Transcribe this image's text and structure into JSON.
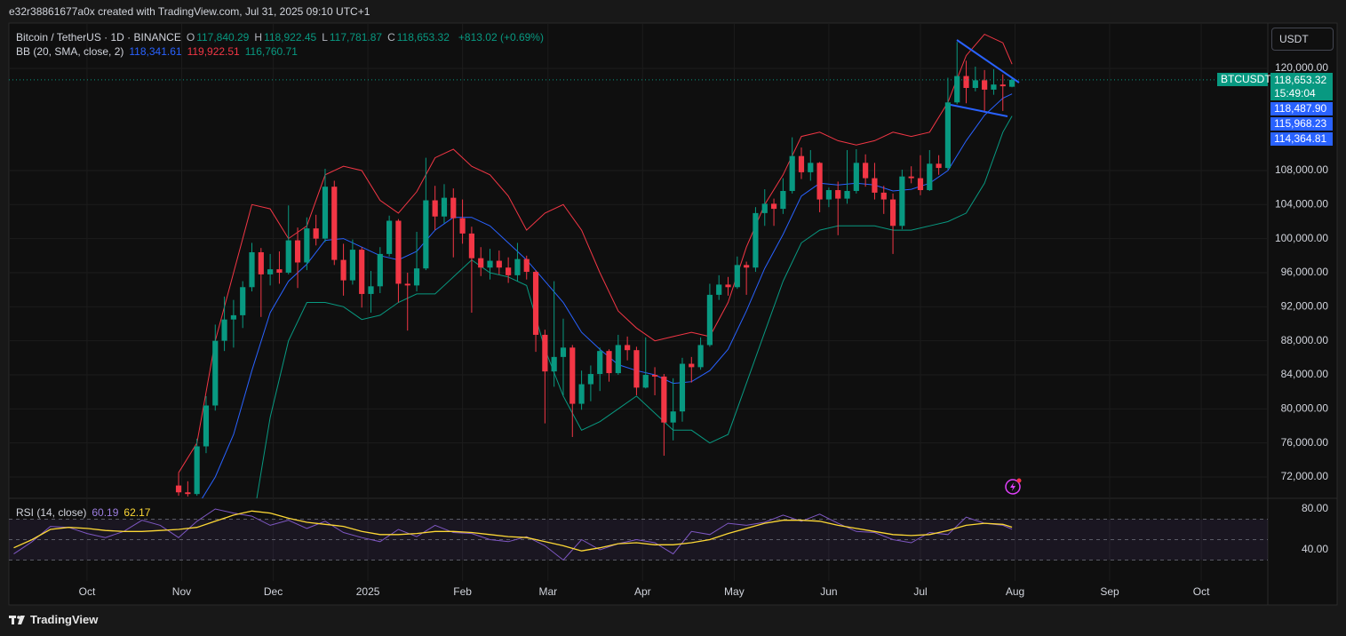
{
  "header": {
    "credit": "e32r38861677a0x created with TradingView.com, Jul 31, 2025 09:10 UTC+1"
  },
  "footer": {
    "brand": "TradingView"
  },
  "chart_data": [
    {
      "type": "candlestick",
      "title": "Bitcoin / TetherUS · 1D · BINANCE",
      "ohlc_legend": [
        {
          "key": "O",
          "value": "117,840.29"
        },
        {
          "key": "H",
          "value": "118,922.45"
        },
        {
          "key": "L",
          "value": "117,781.87"
        },
        {
          "key": "C",
          "value": "118,653.32"
        }
      ],
      "change": "+813.02 (+0.69%)",
      "unit": "USDT",
      "up_color": "#089981",
      "down_color": "#f23645",
      "grid": true,
      "xlim": [
        -25.6,
        386.8
      ],
      "ylim": [
        69600,
        124900
      ],
      "yticks": [
        {
          "value": 72000,
          "label": "72,000.00"
        },
        {
          "value": 76000,
          "label": "76,000.00"
        },
        {
          "value": 80000,
          "label": "80,000.00"
        },
        {
          "value": 84000,
          "label": "84,000.00"
        },
        {
          "value": 88000,
          "label": "88,000.00"
        },
        {
          "value": 92000,
          "label": "92,000.00"
        },
        {
          "value": 96000,
          "label": "96,000.00"
        },
        {
          "value": 100000,
          "label": "100,000.00"
        },
        {
          "value": 104000,
          "label": "104,000.00"
        },
        {
          "value": 108000,
          "label": "108,000.00"
        },
        {
          "value": 120000,
          "label": "120,000.00"
        }
      ],
      "x": [
        30,
        33,
        36,
        39,
        42,
        45,
        48,
        51,
        54,
        57,
        60,
        63,
        66,
        69,
        72,
        75,
        78,
        81,
        84,
        87,
        90,
        93,
        96,
        99,
        102,
        105,
        108,
        111,
        114,
        117,
        120,
        123,
        126,
        129,
        132,
        135,
        138,
        141,
        144,
        147,
        150,
        153,
        156,
        159,
        162,
        165,
        168,
        171,
        174,
        177,
        180,
        183,
        186,
        189,
        192,
        195,
        198,
        201,
        204,
        207,
        210,
        213,
        216,
        219,
        222,
        225,
        228,
        231,
        234,
        237,
        240,
        243,
        246,
        249,
        252,
        255,
        258,
        261,
        264,
        267,
        270,
        273,
        276,
        279,
        282,
        285,
        288,
        291,
        294,
        297,
        300,
        303
      ],
      "ohlc": [
        [
          71000,
          72500,
          69800,
          70200
        ],
        [
          70200,
          71500,
          69700,
          70000
        ],
        [
          70000,
          76500,
          69800,
          75600
        ],
        [
          75600,
          81500,
          74800,
          80400
        ],
        [
          80400,
          89900,
          79800,
          88000
        ],
        [
          88000,
          93200,
          86800,
          90500
        ],
        [
          90500,
          92800,
          87200,
          91000
        ],
        [
          91000,
          95000,
          89500,
          94300
        ],
        [
          94300,
          99500,
          93800,
          98400
        ],
        [
          98400,
          98900,
          90800,
          95800
        ],
        [
          95800,
          98200,
          94500,
          96400
        ],
        [
          96400,
          98500,
          94700,
          96000
        ],
        [
          96000,
          103900,
          95800,
          99800
        ],
        [
          99800,
          101300,
          94200,
          97200
        ],
        [
          97200,
          102500,
          96300,
          101200
        ],
        [
          101200,
          102800,
          99200,
          100000
        ],
        [
          100000,
          108200,
          99600,
          106100
        ],
        [
          106100,
          106800,
          96900,
          97500
        ],
        [
          97500,
          99400,
          93300,
          95100
        ],
        [
          95100,
          99900,
          94600,
          98700
        ],
        [
          98700,
          99000,
          91900,
          93500
        ],
        [
          93500,
          96200,
          91300,
          94400
        ],
        [
          94400,
          99000,
          93600,
          98200
        ],
        [
          98200,
          102700,
          97900,
          102100
        ],
        [
          102100,
          102300,
          92500,
          94700
        ],
        [
          94700,
          96000,
          89200,
          94500
        ],
        [
          94500,
          100800,
          93800,
          96500
        ],
        [
          96500,
          109500,
          96300,
          104500
        ],
        [
          104500,
          106200,
          101000,
          102600
        ],
        [
          102600,
          106400,
          101800,
          104800
        ],
        [
          104800,
          105900,
          97800,
          102400
        ],
        [
          102400,
          104600,
          99400,
          100600
        ],
        [
          100600,
          101400,
          91300,
          97700
        ],
        [
          97700,
          99000,
          95600,
          96600
        ],
        [
          96600,
          98800,
          95200,
          97400
        ],
        [
          97400,
          98600,
          95800,
          96600
        ],
        [
          96600,
          97800,
          94800,
          95700
        ],
        [
          95700,
          99500,
          95000,
          97600
        ],
        [
          97600,
          98000,
          95200,
          96100
        ],
        [
          96100,
          96300,
          86700,
          88700
        ],
        [
          88700,
          89300,
          78300,
          84400
        ],
        [
          84400,
          95000,
          82600,
          86100
        ],
        [
          86100,
          90600,
          81600,
          87200
        ],
        [
          87200,
          87500,
          76700,
          80600
        ],
        [
          80600,
          84500,
          79900,
          82900
        ],
        [
          82900,
          85100,
          80900,
          84100
        ],
        [
          84100,
          87200,
          82100,
          86800
        ],
        [
          86800,
          87000,
          83200,
          84200
        ],
        [
          84200,
          88700,
          84000,
          87500
        ],
        [
          87500,
          88500,
          85700,
          86900
        ],
        [
          86900,
          87300,
          81600,
          82500
        ],
        [
          82500,
          88400,
          82400,
          84000
        ],
        [
          84000,
          84900,
          81600,
          83800
        ],
        [
          83800,
          84100,
          74500,
          78400
        ],
        [
          78400,
          83600,
          76300,
          79700
        ],
        [
          79700,
          86000,
          78500,
          85300
        ],
        [
          85300,
          86100,
          83100,
          84900
        ],
        [
          84900,
          88400,
          84600,
          87500
        ],
        [
          87500,
          94700,
          87300,
          93400
        ],
        [
          93400,
          95700,
          92800,
          94600
        ],
        [
          94600,
          95500,
          93300,
          94300
        ],
        [
          94300,
          97900,
          94100,
          96900
        ],
        [
          96900,
          97300,
          93400,
          96600
        ],
        [
          96600,
          103700,
          96100,
          103000
        ],
        [
          103000,
          105800,
          101500,
          104100
        ],
        [
          104100,
          104700,
          101500,
          103500
        ],
        [
          103500,
          107100,
          102900,
          105600
        ],
        [
          105600,
          111900,
          105300,
          109700
        ],
        [
          109700,
          110700,
          107000,
          107800
        ],
        [
          107800,
          110400,
          106800,
          108900
        ],
        [
          108900,
          109000,
          103100,
          104600
        ],
        [
          104600,
          106000,
          103700,
          105700
        ],
        [
          105700,
          106700,
          100400,
          104700
        ],
        [
          104700,
          110400,
          104100,
          105600
        ],
        [
          105600,
          110500,
          105300,
          108900
        ],
        [
          108900,
          109900,
          106100,
          107100
        ],
        [
          107100,
          108900,
          104600,
          105400
        ],
        [
          105400,
          106200,
          102900,
          104600
        ],
        [
          104600,
          105300,
          98200,
          101500
        ],
        [
          101500,
          108100,
          101100,
          107300
        ],
        [
          107300,
          108500,
          106500,
          107100
        ],
        [
          107100,
          109800,
          105100,
          105700
        ],
        [
          105700,
          110400,
          105600,
          108800
        ],
        [
          108800,
          109800,
          107500,
          108300
        ],
        [
          108300,
          118900,
          108100,
          116000
        ],
        [
          116000,
          123100,
          115800,
          119100
        ],
        [
          119100,
          120900,
          115900,
          117700
        ],
        [
          117700,
          120200,
          117300,
          118600
        ],
        [
          118600,
          119800,
          114800,
          117500
        ],
        [
          117500,
          119900,
          116900,
          118100
        ],
        [
          118100,
          119300,
          115000,
          117900
        ],
        [
          117840.29,
          118922.45,
          117781.87,
          118653.32
        ]
      ],
      "bands": {
        "title": "BB (20, SMA, close, 2)",
        "legend_values": [
          "118,341.61",
          "119,922.51",
          "116,760.71"
        ],
        "x": [
          30,
          36,
          42,
          48,
          54,
          60,
          66,
          72,
          78,
          84,
          90,
          96,
          102,
          108,
          114,
          120,
          126,
          132,
          138,
          144,
          150,
          156,
          162,
          168,
          174,
          180,
          186,
          192,
          198,
          204,
          210,
          216,
          222,
          228,
          234,
          240,
          246,
          252,
          258,
          264,
          270,
          276,
          282,
          288,
          294,
          300,
          303
        ],
        "series": [
          {
            "color": "#2962ff",
            "values": [
              67000,
              68500,
              72000,
              77000,
              84500,
              91300,
              95000,
              97000,
              99800,
              100000,
              99000,
              98000,
              97500,
              98500,
              101000,
              102500,
              102500,
              101500,
              99500,
              97500,
              95000,
              92500,
              89000,
              87000,
              85200,
              84500,
              84000,
              83000,
              83200,
              84500,
              87000,
              91500,
              96500,
              100500,
              105000,
              106500,
              106300,
              106500,
              106300,
              105600,
              105800,
              106500,
              108000,
              111500,
              114500,
              116500,
              117000
            ]
          },
          {
            "color": "#f23645",
            "values": [
              72500,
              76000,
              88000,
              96000,
              104000,
              103500,
              100000,
              101500,
              107500,
              108500,
              108000,
              104500,
              103000,
              105500,
              109500,
              110500,
              108500,
              107500,
              105000,
              101000,
              103000,
              104000,
              101000,
              96000,
              91500,
              89500,
              88000,
              88500,
              89000,
              88500,
              92500,
              99000,
              104000,
              107500,
              112000,
              112500,
              111500,
              111000,
              111500,
              112500,
              112000,
              112500,
              116000,
              121500,
              124000,
              123000,
              120500
            ]
          },
          {
            "color": "#089981",
            "values": [
              62000,
              60000,
              58000,
              60000,
              66000,
              79000,
              88000,
              92500,
              92500,
              92000,
              90500,
              91000,
              92500,
              93500,
              93500,
              95500,
              97500,
              96000,
              95500,
              94500,
              87000,
              81500,
              77500,
              78500,
              80000,
              81500,
              79500,
              77500,
              77500,
              76000,
              77000,
              83000,
              89000,
              95000,
              99500,
              101000,
              101500,
              101500,
              101500,
              101000,
              101000,
              101500,
              102000,
              103000,
              106500,
              112500,
              114400
            ]
          }
        ]
      },
      "price_tags": {
        "symbol": "BTCUSDT",
        "last": "118,653.32",
        "countdown": "15:49:04",
        "others": [
          "118,487.90",
          "115,968.23",
          "114,364.81"
        ]
      }
    },
    {
      "type": "line",
      "title": "RSI (14, close)",
      "legend_values": [
        "60.19",
        "62.17"
      ],
      "xlim": [
        -25.6,
        386.8
      ],
      "xticks": [
        {
          "value": 0,
          "label": "Oct"
        },
        {
          "value": 31,
          "label": "Nov"
        },
        {
          "value": 61,
          "label": "Dec"
        },
        {
          "value": 92,
          "label": "2025"
        },
        {
          "value": 123,
          "label": "Feb"
        },
        {
          "value": 151,
          "label": "Mar"
        },
        {
          "value": 182,
          "label": "Apr"
        },
        {
          "value": 212,
          "label": "May"
        },
        {
          "value": 243,
          "label": "Jun"
        },
        {
          "value": 273,
          "label": "Jul"
        },
        {
          "value": 304,
          "label": "Aug"
        },
        {
          "value": 335,
          "label": "Sep"
        },
        {
          "value": 365,
          "label": "Oct"
        }
      ],
      "ylim": [
        11.3,
        89.6
      ],
      "yticks": [
        {
          "value": 40,
          "label": "40.00"
        },
        {
          "value": 80,
          "label": "80.00"
        }
      ],
      "levels": [
        70,
        50,
        30
      ],
      "level_fill": "#7e57c2",
      "x": [
        -24,
        -18,
        -12,
        -6,
        0,
        6,
        12,
        18,
        24,
        30,
        36,
        42,
        48,
        54,
        60,
        66,
        72,
        78,
        84,
        90,
        96,
        102,
        108,
        114,
        120,
        126,
        132,
        138,
        144,
        150,
        156,
        162,
        168,
        174,
        180,
        186,
        192,
        198,
        204,
        210,
        216,
        222,
        228,
        234,
        240,
        246,
        252,
        258,
        264,
        270,
        276,
        282,
        288,
        294,
        300,
        303
      ],
      "series": [
        {
          "color": "#7e57c2",
          "values": [
            36,
            48,
            63,
            62,
            56,
            52,
            58,
            69,
            64,
            52,
            68,
            80,
            76,
            73,
            64,
            69,
            61,
            68,
            57,
            52,
            48,
            60,
            53,
            64,
            57,
            56,
            50,
            48,
            53,
            44,
            30,
            50,
            40,
            46,
            50,
            47,
            36,
            58,
            55,
            66,
            64,
            67,
            74,
            68,
            75,
            66,
            58,
            57,
            50,
            47,
            57,
            55,
            72,
            66,
            64,
            60.19
          ]
        },
        {
          "color": "#fdd835",
          "values": [
            42,
            50,
            60,
            62,
            61,
            59,
            58,
            58,
            59,
            60,
            62,
            68,
            74,
            78,
            76,
            71,
            67,
            65,
            63,
            58,
            55,
            55,
            56,
            58,
            58,
            57,
            55,
            53,
            52,
            48,
            44,
            39,
            42,
            46,
            47,
            45,
            45,
            47,
            50,
            56,
            61,
            66,
            69,
            69,
            68,
            64,
            61,
            58,
            55,
            54,
            55,
            59,
            64,
            66,
            65,
            62.17
          ]
        }
      ]
    }
  ]
}
